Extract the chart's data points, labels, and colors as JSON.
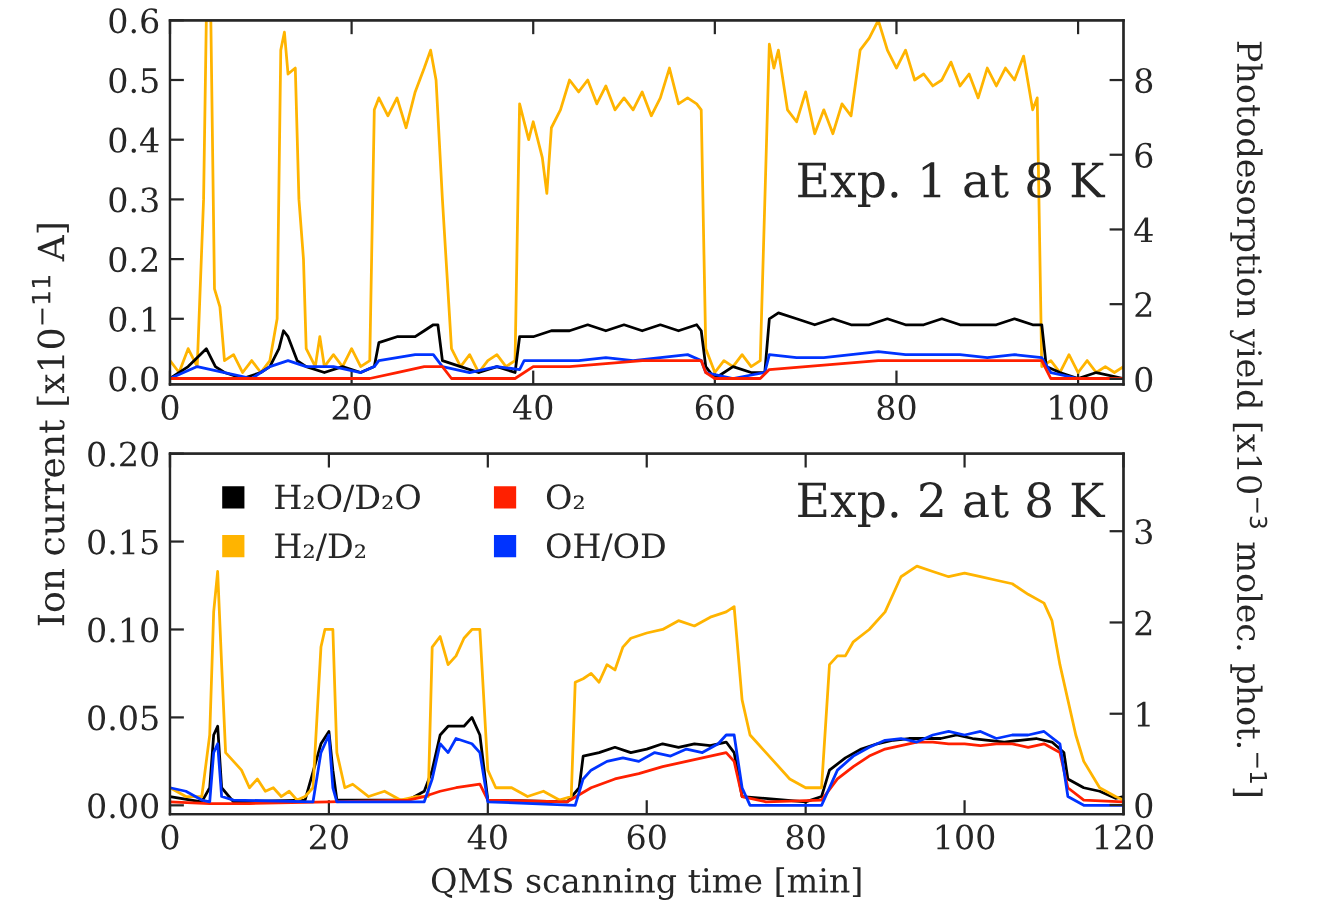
{
  "chart_data": [
    {
      "type": "line",
      "ylabel": "Ion current [x10$^{−11}$ A]",
      "y2label": "Photodesorption yield [x10$^{−3}$ molec. phot.$^{−1}$]",
      "annotations": [
        "Exp. 1 at 8 K"
      ],
      "xlim": [
        0,
        105
      ],
      "xticks": [
        0,
        20,
        40,
        60,
        80,
        100
      ],
      "ylim": [
        -0.01,
        0.6
      ],
      "yticks": [
        {
          "value": 0,
          "label": "0.0"
        },
        0.1,
        0.2,
        0.3,
        0.4,
        0.5,
        0.6
      ],
      "y2lim": [
        -0.15,
        9.6
      ],
      "y2ticks": [
        0,
        2,
        4,
        6,
        8
      ],
      "grid": false,
      "legend": false,
      "series": [
        {
          "color": "#ffb400",
          "x": [
            0,
            1,
            2,
            3,
            3.7,
            4.0,
            4.5,
            4.9,
            5.5,
            6,
            7,
            8,
            9,
            10,
            11,
            11.8,
            12.2,
            12.6,
            13,
            13.8,
            14.2,
            14.7,
            15,
            16,
            16.5,
            17,
            18,
            19,
            20,
            21,
            22,
            22.5,
            23,
            24,
            25,
            26,
            27,
            28,
            28.7,
            29.3,
            30,
            31,
            32,
            33,
            34,
            35,
            36,
            37,
            38,
            38.5,
            39.5,
            40,
            41,
            41.5,
            42,
            43,
            44,
            45,
            46,
            47,
            48,
            49,
            50,
            51,
            52,
            53,
            54,
            55,
            56,
            57,
            58,
            58.5,
            59,
            60,
            61,
            62,
            63,
            64,
            65,
            66,
            66.5,
            67,
            68,
            69,
            70,
            71,
            72,
            73,
            74,
            75,
            76,
            77,
            78,
            79,
            80,
            81,
            82,
            83,
            84,
            85,
            86,
            87,
            88,
            89,
            90,
            91,
            92,
            93,
            94,
            95,
            95.5,
            96,
            97,
            98,
            99,
            100,
            101,
            102,
            103,
            104,
            105
          ],
          "values": [
            0.03,
            0.01,
            0.05,
            0.02,
            0.3,
            0.6,
            0.6,
            0.15,
            0.12,
            0.03,
            0.04,
            0.01,
            0.03,
            0.01,
            0.03,
            0.1,
            0.55,
            0.58,
            0.51,
            0.52,
            0.3,
            0.2,
            0.05,
            0.02,
            0.07,
            0.02,
            0.04,
            0.02,
            0.05,
            0.02,
            0.03,
            0.45,
            0.47,
            0.44,
            0.47,
            0.42,
            0.48,
            0.52,
            0.55,
            0.5,
            0.3,
            0.05,
            0.02,
            0.04,
            0.01,
            0.03,
            0.04,
            0.02,
            0.03,
            0.46,
            0.4,
            0.43,
            0.37,
            0.31,
            0.42,
            0.45,
            0.5,
            0.48,
            0.5,
            0.46,
            0.49,
            0.45,
            0.47,
            0.45,
            0.48,
            0.44,
            0.47,
            0.52,
            0.46,
            0.47,
            0.46,
            0.45,
            0.05,
            0.01,
            0.03,
            0.02,
            0.04,
            0.02,
            0.03,
            0.56,
            0.52,
            0.55,
            0.45,
            0.43,
            0.48,
            0.41,
            0.45,
            0.41,
            0.46,
            0.44,
            0.55,
            0.57,
            0.6,
            0.55,
            0.52,
            0.55,
            0.5,
            0.51,
            0.49,
            0.5,
            0.53,
            0.49,
            0.51,
            0.47,
            0.52,
            0.49,
            0.52,
            0.5,
            0.54,
            0.45,
            0.47,
            0.02,
            0.03,
            0.01,
            0.04,
            0.01,
            0.03,
            0.01,
            0.02,
            0.01,
            0.02
          ]
        },
        {
          "color": "#000000",
          "x": [
            0,
            2,
            4,
            5,
            6,
            8,
            10,
            11,
            12,
            12.5,
            13,
            14,
            15,
            17,
            19,
            21,
            22.5,
            23,
            25,
            27,
            28,
            29,
            29.5,
            30,
            32,
            34,
            36,
            38,
            38.5,
            40,
            42,
            44,
            46,
            48,
            50,
            52,
            54,
            56,
            58,
            58.5,
            59,
            60,
            62,
            64,
            65.5,
            66,
            67,
            69,
            71,
            73,
            75,
            77,
            79,
            81,
            83,
            85,
            87,
            89,
            91,
            93,
            95,
            96,
            96.5,
            98,
            100,
            102,
            105
          ],
          "values": [
            0.0,
            0.02,
            0.05,
            0.02,
            0.01,
            0.0,
            0.01,
            0.02,
            0.05,
            0.08,
            0.07,
            0.03,
            0.02,
            0.01,
            0.02,
            0.01,
            0.02,
            0.06,
            0.07,
            0.07,
            0.08,
            0.09,
            0.09,
            0.03,
            0.02,
            0.01,
            0.02,
            0.01,
            0.07,
            0.07,
            0.08,
            0.08,
            0.09,
            0.08,
            0.09,
            0.08,
            0.09,
            0.08,
            0.09,
            0.08,
            0.02,
            0.0,
            0.02,
            0.01,
            0.01,
            0.1,
            0.11,
            0.1,
            0.09,
            0.1,
            0.09,
            0.09,
            0.1,
            0.09,
            0.09,
            0.1,
            0.09,
            0.09,
            0.09,
            0.1,
            0.09,
            0.09,
            0.02,
            0.01,
            0.0,
            0.01,
            0.0
          ]
        },
        {
          "color": "#0033ff",
          "x": [
            0,
            3,
            6,
            9,
            11,
            13,
            15,
            18,
            21,
            22.5,
            23,
            25,
            27,
            29,
            30,
            33,
            36,
            38.5,
            39,
            42,
            45,
            48,
            51,
            54,
            57,
            58.5,
            59,
            62,
            65.5,
            66,
            69,
            72,
            75,
            78,
            81,
            84,
            87,
            90,
            93,
            96,
            97,
            100,
            105
          ],
          "values": [
            0.0,
            0.02,
            0.01,
            0.0,
            0.02,
            0.03,
            0.02,
            0.02,
            0.01,
            0.02,
            0.03,
            0.035,
            0.04,
            0.04,
            0.02,
            0.01,
            0.02,
            0.015,
            0.03,
            0.03,
            0.03,
            0.035,
            0.03,
            0.035,
            0.04,
            0.03,
            0.01,
            0.0,
            0.01,
            0.04,
            0.035,
            0.035,
            0.04,
            0.045,
            0.04,
            0.04,
            0.04,
            0.035,
            0.04,
            0.035,
            0.01,
            0.0,
            0.0
          ]
        },
        {
          "color": "#ff2000",
          "x": [
            0,
            22,
            25,
            28,
            30,
            31,
            38,
            40,
            44,
            48,
            52,
            56,
            58.5,
            59,
            60,
            65,
            66,
            70,
            74,
            78,
            82,
            86,
            90,
            94,
            96,
            97,
            105
          ],
          "values": [
            0.0,
            0.0,
            0.01,
            0.02,
            0.02,
            0.0,
            0.0,
            0.02,
            0.02,
            0.025,
            0.03,
            0.03,
            0.03,
            0.01,
            0.0,
            0.0,
            0.015,
            0.02,
            0.025,
            0.03,
            0.03,
            0.03,
            0.03,
            0.03,
            0.03,
            0.0,
            0.0
          ]
        }
      ]
    },
    {
      "type": "line",
      "xlabel": "QMS scanning time [min]",
      "annotations": [
        "Exp. 2 at 8 K"
      ],
      "xlim": [
        0,
        120
      ],
      "xticks": [
        0,
        20,
        40,
        60,
        80,
        100,
        120
      ],
      "ylim": [
        -0.005,
        0.2
      ],
      "yticks": [
        {
          "value": 0,
          "label": "0.00"
        },
        {
          "value": 0.05,
          "label": "0.05"
        },
        {
          "value": 0.1,
          "label": "0.10"
        },
        {
          "value": 0.15,
          "label": "0.15"
        },
        {
          "value": 0.2,
          "label": "0.20"
        }
      ],
      "y2lim": [
        -0.1,
        3.85
      ],
      "y2ticks": [
        0,
        1,
        2,
        3
      ],
      "grid": false,
      "legend": "top left",
      "series": [
        {
          "name": "H₂O/D₂O",
          "color": "#000000",
          "x": [
            0,
            4,
            5,
            5.5,
            6,
            6.5,
            8,
            17,
            19,
            20,
            20.5,
            21,
            30,
            32,
            33,
            34,
            35,
            37,
            38,
            39,
            40,
            50,
            51.5,
            52,
            54,
            56,
            58,
            60,
            62,
            64,
            66,
            68,
            70,
            71,
            72,
            80,
            82,
            83,
            85,
            87,
            89,
            91,
            93,
            95,
            97,
            99,
            101,
            103,
            105,
            107,
            109,
            111,
            112.5,
            113,
            115,
            117,
            119,
            120
          ],
          "values": [
            0.005,
            0.002,
            0.01,
            0.04,
            0.045,
            0.01,
            0.002,
            0.003,
            0.035,
            0.042,
            0.02,
            0.003,
            0.003,
            0.008,
            0.02,
            0.04,
            0.045,
            0.045,
            0.05,
            0.04,
            0.003,
            0.002,
            0.01,
            0.028,
            0.03,
            0.033,
            0.03,
            0.032,
            0.035,
            0.033,
            0.035,
            0.034,
            0.036,
            0.03,
            0.005,
            0.002,
            0.005,
            0.02,
            0.027,
            0.032,
            0.035,
            0.037,
            0.038,
            0.038,
            0.038,
            0.04,
            0.038,
            0.037,
            0.036,
            0.037,
            0.038,
            0.036,
            0.03,
            0.015,
            0.01,
            0.008,
            0.004,
            0.005
          ]
        },
        {
          "name": "H₂/D₂",
          "color": "#ffb400",
          "x": [
            0,
            2,
            4,
            5,
            5.5,
            6,
            6.5,
            7,
            8,
            9,
            10,
            11,
            12,
            13,
            14,
            15,
            16,
            17,
            18,
            19,
            19.5,
            20.5,
            21,
            22,
            23,
            25,
            27,
            29,
            31,
            32.5,
            33,
            34,
            35,
            36,
            37,
            38,
            39,
            40,
            41,
            43,
            45,
            47,
            49,
            50.5,
            51,
            52,
            53,
            54,
            55,
            56,
            57,
            58,
            60,
            62,
            64,
            66,
            68,
            70,
            71,
            72,
            73,
            74,
            76,
            78,
            80,
            82,
            83,
            84,
            85,
            86,
            88,
            90,
            92,
            94,
            96,
            98,
            100,
            102,
            104,
            106,
            108,
            110,
            111,
            112,
            113,
            114,
            115,
            117,
            119,
            120
          ],
          "values": [
            0.01,
            0.005,
            0.005,
            0.04,
            0.11,
            0.133,
            0.08,
            0.03,
            0.025,
            0.02,
            0.01,
            0.015,
            0.008,
            0.01,
            0.005,
            0.008,
            0.003,
            0.005,
            0.01,
            0.09,
            0.1,
            0.1,
            0.03,
            0.01,
            0.012,
            0.005,
            0.008,
            0.003,
            0.005,
            0.005,
            0.09,
            0.096,
            0.08,
            0.085,
            0.095,
            0.1,
            0.1,
            0.02,
            0.01,
            0.01,
            0.005,
            0.008,
            0.003,
            0.005,
            0.07,
            0.072,
            0.075,
            0.07,
            0.08,
            0.077,
            0.09,
            0.095,
            0.098,
            0.1,
            0.105,
            0.102,
            0.107,
            0.11,
            0.113,
            0.06,
            0.04,
            0.035,
            0.025,
            0.015,
            0.01,
            0.01,
            0.08,
            0.085,
            0.085,
            0.093,
            0.1,
            0.11,
            0.13,
            0.136,
            0.133,
            0.13,
            0.132,
            0.13,
            0.128,
            0.126,
            0.12,
            0.115,
            0.105,
            0.08,
            0.06,
            0.04,
            0.025,
            0.01,
            0.005,
            0.003
          ]
        },
        {
          "name": "O₂",
          "color": "#ff2000",
          "x": [
            0,
            5,
            10,
            20,
            30,
            32,
            34,
            36,
            39,
            40,
            50,
            53,
            56,
            59,
            62,
            65,
            68,
            70,
            71,
            72,
            75,
            82,
            84,
            86,
            88,
            90,
            92,
            94,
            96,
            98,
            100,
            102,
            104,
            106,
            108,
            110,
            112,
            113,
            115,
            120
          ],
          "values": [
            0.002,
            0.001,
            0.001,
            0.002,
            0.003,
            0.005,
            0.008,
            0.01,
            0.012,
            0.003,
            0.002,
            0.01,
            0.015,
            0.018,
            0.022,
            0.025,
            0.028,
            0.03,
            0.025,
            0.005,
            0.002,
            0.003,
            0.015,
            0.022,
            0.028,
            0.032,
            0.034,
            0.036,
            0.036,
            0.035,
            0.035,
            0.034,
            0.035,
            0.035,
            0.033,
            0.035,
            0.03,
            0.01,
            0.003,
            0.002
          ]
        },
        {
          "name": "OH/OD",
          "color": "#0033ff",
          "x": [
            0,
            2,
            4,
            5,
            5.5,
            6,
            6.5,
            8,
            18,
            19,
            20,
            20.5,
            21,
            32,
            33,
            34,
            35,
            36,
            38,
            39,
            40,
            51,
            52,
            53,
            55,
            57,
            59,
            61,
            63,
            65,
            67,
            69,
            70,
            71,
            72,
            73,
            82,
            84,
            86,
            88,
            90,
            92,
            94,
            96,
            98,
            100,
            102,
            104,
            106,
            108,
            110,
            112,
            113,
            115,
            120
          ],
          "values": [
            0.01,
            0.008,
            0.003,
            0.002,
            0.03,
            0.035,
            0.005,
            0.003,
            0.002,
            0.03,
            0.04,
            0.01,
            0.002,
            0.002,
            0.015,
            0.035,
            0.03,
            0.038,
            0.035,
            0.03,
            0.002,
            0.0,
            0.015,
            0.02,
            0.025,
            0.027,
            0.025,
            0.03,
            0.028,
            0.032,
            0.03,
            0.035,
            0.04,
            0.04,
            0.01,
            0.0,
            0.0,
            0.02,
            0.028,
            0.033,
            0.037,
            0.038,
            0.036,
            0.04,
            0.042,
            0.04,
            0.042,
            0.038,
            0.04,
            0.04,
            0.042,
            0.035,
            0.005,
            0.0,
            0.0
          ]
        }
      ]
    }
  ]
}
